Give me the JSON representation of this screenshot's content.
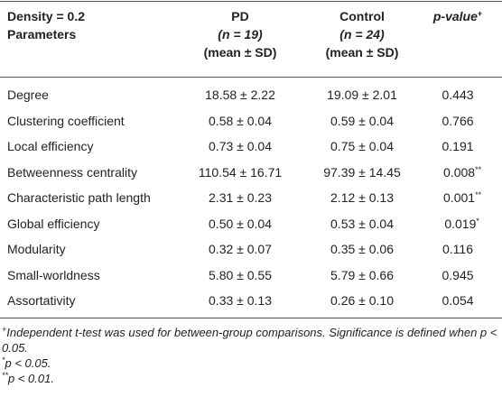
{
  "table": {
    "header": {
      "parameter": [
        "Density = 0.2",
        "Parameters"
      ],
      "pd": [
        "PD",
        "(n = 19)",
        "(mean ± SD)"
      ],
      "control": [
        "Control",
        "(n = 24)",
        "(mean ± SD)"
      ],
      "p_value": {
        "text": "p-value",
        "mark": "+"
      }
    },
    "rows": [
      {
        "parameter": "Degree",
        "pd": "18.58 ± 2.22",
        "control": "19.09 ± 2.01",
        "p_value": "0.443"
      },
      {
        "parameter": "Clustering coefficient",
        "pd": "0.58 ± 0.04",
        "control": "0.59 ± 0.04",
        "p_value": "0.766"
      },
      {
        "parameter": "Local efficiency",
        "pd": "0.73 ± 0.04",
        "control": "0.75 ± 0.04",
        "p_value": "0.191"
      },
      {
        "parameter": "Betweenness centrality",
        "pd": "110.54 ± 16.71",
        "control": "97.39 ± 14.45",
        "p_value": "0.008",
        "p_mark": "**"
      },
      {
        "parameter": "Characteristic path length",
        "pd": "2.31 ± 0.23",
        "control": "2.12 ± 0.13",
        "p_value": "0.001",
        "p_mark": "**"
      },
      {
        "parameter": "Global efficiency",
        "pd": "0.50 ± 0.04",
        "control": "0.53 ± 0.04",
        "p_value": "0.019",
        "p_mark": "*"
      },
      {
        "parameter": "Modularity",
        "pd": "0.32 ± 0.07",
        "control": "0.35 ± 0.06",
        "p_value": "0.116"
      },
      {
        "parameter": "Small-worldness",
        "pd": "5.80 ± 0.55",
        "control": "5.79 ± 0.66",
        "p_value": "0.945"
      },
      {
        "parameter": "Assortativity",
        "pd": "0.33 ± 0.13",
        "control": "0.26 ± 0.10",
        "p_value": "0.054"
      }
    ],
    "footnotes": [
      {
        "mark": "+",
        "text": "Independent t-test was used for between-group comparisons. Significance is defined when p < 0.05."
      },
      {
        "mark": "*",
        "text": "p < 0.05."
      },
      {
        "mark": "**",
        "text": "p < 0.01."
      }
    ]
  }
}
